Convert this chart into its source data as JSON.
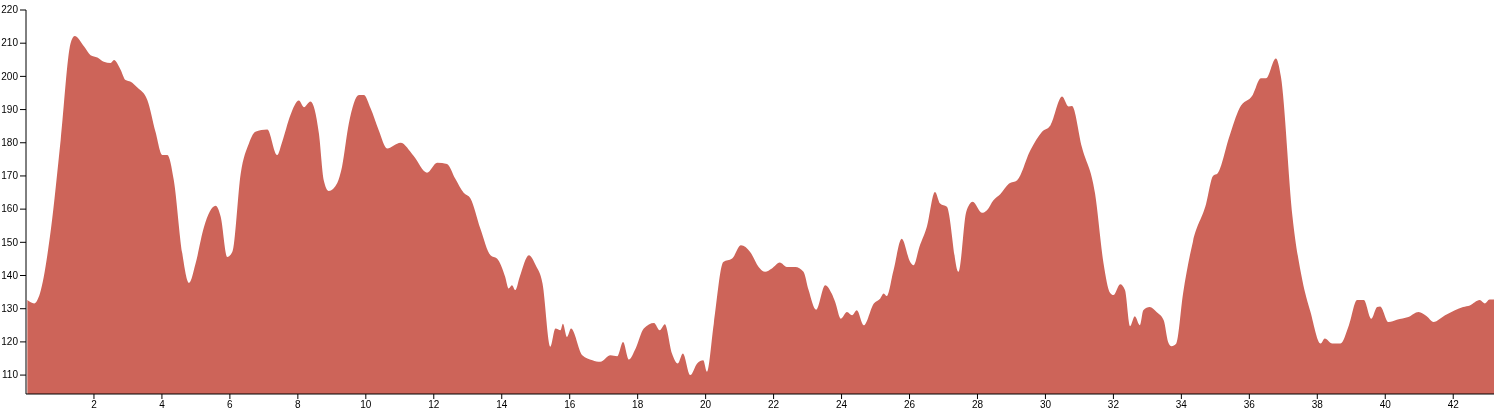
{
  "chart_data": {
    "type": "area",
    "color": "#cd6459",
    "x": [
      0.04,
      0.24,
      0.41,
      0.73,
      1.02,
      1.31,
      1.43,
      1.71,
      1.9,
      2.1,
      2.29,
      2.49,
      2.59,
      2.78,
      2.93,
      3.08,
      3.27,
      3.57,
      3.81,
      4.01,
      4.16,
      4.35,
      4.6,
      4.8,
      4.99,
      5.24,
      5.58,
      5.73,
      5.92,
      6.07,
      6.32,
      6.56,
      6.75,
      7.1,
      7.39,
      7.54,
      7.78,
      8.03,
      8.18,
      8.37,
      8.62,
      8.76,
      8.91,
      9.16,
      9.3,
      9.5,
      9.8,
      9.94,
      10.14,
      10.38,
      10.63,
      11.02,
      11.41,
      11.8,
      12.1,
      12.39,
      12.63,
      12.88,
      13.08,
      13.37,
      13.67,
      13.86,
      14.1,
      14.2,
      14.3,
      14.4,
      14.53,
      14.8,
      15,
      15.2,
      15.43,
      15.58,
      15.73,
      15.8,
      15.92,
      16.04,
      16.37,
      16.67,
      16.9,
      17.2,
      17.4,
      17.57,
      17.74,
      17.94,
      18.18,
      18.48,
      18.65,
      18.8,
      19.01,
      19.18,
      19.33,
      19.55,
      19.75,
      19.93,
      20.04,
      20.24,
      20.52,
      20.78,
      21.04,
      21.31,
      21.56,
      21.75,
      21.95,
      22.18,
      22.39,
      22.64,
      22.88,
      23.03,
      23.25,
      23.52,
      23.71,
      23.81,
      23.98,
      24.16,
      24.31,
      24.45,
      24.65,
      24.95,
      25.14,
      25.24,
      25.33,
      25.53,
      25.77,
      26.02,
      26.12,
      26.29,
      26.51,
      26.75,
      26.9,
      27.1,
      27.44,
      27.67,
      27.86,
      28.13,
      28.28,
      28.47,
      28.67,
      28.93,
      29.17,
      29.56,
      29.9,
      30.15,
      30.49,
      30.68,
      30.78,
      31.07,
      31.46,
      31.71,
      31.9,
      32,
      32.2,
      32.34,
      32.49,
      32.63,
      32.78,
      32.88,
      33.07,
      33.27,
      33.48,
      33.61,
      33.71,
      33.85,
      34.05,
      34.34,
      34.73,
      34.93,
      35.07,
      35.41,
      35.71,
      36.1,
      36.34,
      36.49,
      36.78,
      36.93,
      37.27,
      37.56,
      37.8,
      38.1,
      38.22,
      38.44,
      38.68,
      38.93,
      39.17,
      39.37,
      39.59,
      39.76,
      39.85,
      40.1,
      40.34,
      40.68,
      40.98,
      41.22,
      41.42,
      41.76,
      42.05,
      42.29,
      42.49,
      42.78,
      42.93,
      43.07,
      43.2
    ],
    "values": [
      132.6,
      131.6,
      134.6,
      153.7,
      180.8,
      209.9,
      212.2,
      209,
      206.4,
      205.7,
      204.4,
      204,
      204.9,
      202.1,
      198.9,
      198.4,
      196.7,
      192.9,
      183.3,
      176.3,
      176.3,
      168.7,
      146.6,
      137.8,
      143.6,
      154.7,
      161,
      157.7,
      145.6,
      147.1,
      170.8,
      179.8,
      183.3,
      184,
      176.3,
      180.3,
      188.3,
      192.7,
      190.7,
      192.4,
      182.8,
      168.8,
      165.5,
      167.9,
      172.8,
      185.8,
      194.4,
      194.4,
      190.4,
      183.8,
      178.3,
      180,
      176,
      171,
      174,
      173.6,
      169.2,
      164.9,
      163.2,
      154.2,
      146.1,
      145.1,
      139.6,
      136.1,
      137.1,
      135.6,
      139.6,
      146.1,
      143.1,
      137.6,
      118.5,
      124,
      123.5,
      125.5,
      121.5,
      124,
      116,
      114.5,
      114,
      116,
      115.7,
      120,
      114.7,
      118,
      124,
      125.7,
      123.5,
      125.3,
      116.5,
      113.5,
      116.5,
      110,
      113.5,
      114.5,
      111,
      125.5,
      144.1,
      145.1,
      149.1,
      147.1,
      142.6,
      141.1,
      142.1,
      143.9,
      142.6,
      142.6,
      141.1,
      135.6,
      129.7,
      137.1,
      134.6,
      132.1,
      127,
      129,
      128,
      129.5,
      125,
      131.6,
      133.1,
      134.6,
      133.8,
      141.6,
      151.1,
      144.1,
      143.1,
      148.6,
      154.7,
      165.2,
      161.7,
      160.7,
      141.1,
      159.2,
      162.2,
      158.9,
      159.7,
      162.7,
      164.5,
      167.7,
      168.7,
      177.8,
      183.3,
      185.3,
      193.9,
      190.9,
      191.1,
      178.8,
      164.7,
      143.6,
      134.8,
      134.1,
      137.4,
      135.6,
      124.7,
      127.7,
      125,
      129.5,
      130.5,
      129,
      126.5,
      120,
      118.7,
      119.5,
      134.6,
      150.2,
      161.7,
      170,
      170.8,
      181.8,
      190.4,
      194.4,
      199.4,
      199.4,
      205.4,
      199.9,
      157.7,
      138.6,
      129,
      119.5,
      121,
      119.5,
      119.5,
      125,
      132.6,
      132.6,
      127,
      130.5,
      130.7,
      126,
      126.7,
      127.5,
      129,
      127.7,
      126,
      128,
      129.5,
      130.5,
      131,
      132.6,
      131.6,
      132.8,
      132.8
    ],
    "xlim": [
      0,
      43.2
    ],
    "ylim": [
      104.3,
      220
    ],
    "xticks": [
      2,
      4,
      6,
      8,
      10,
      12,
      14,
      16,
      18,
      20,
      22,
      24,
      26,
      28,
      30,
      32,
      34,
      36,
      38,
      40,
      42
    ],
    "yticks": [
      110,
      120,
      130,
      140,
      150,
      160,
      170,
      180,
      190,
      200,
      210,
      220
    ]
  }
}
